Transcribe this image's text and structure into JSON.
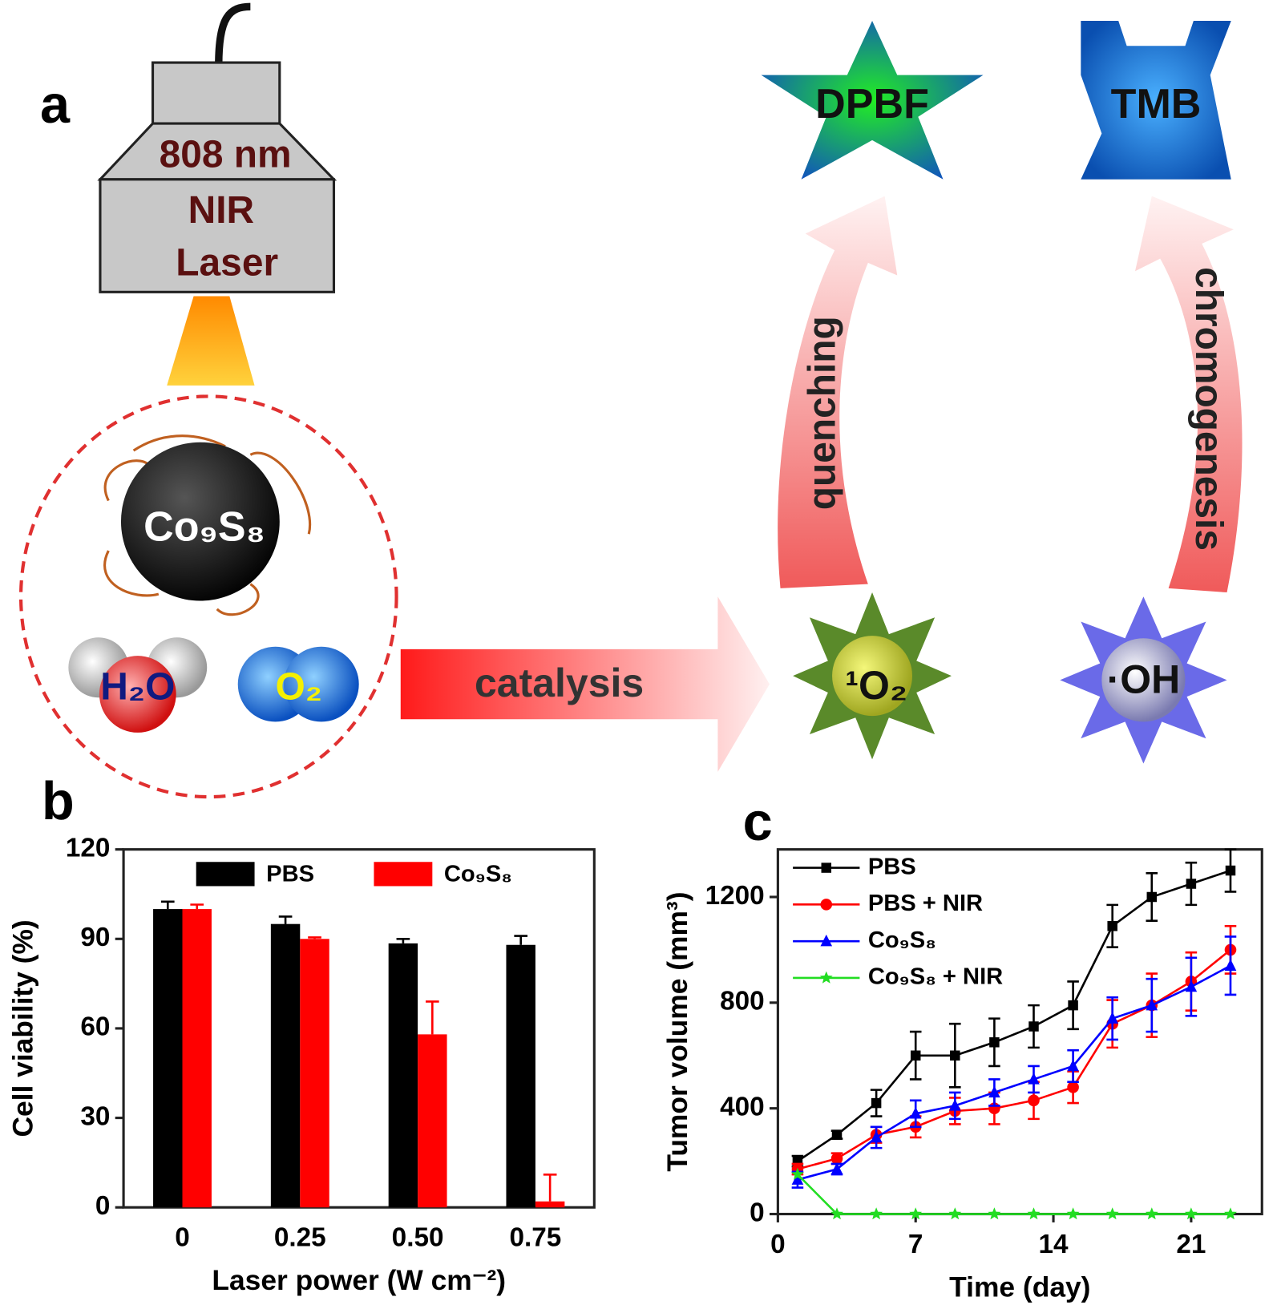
{
  "diagram": {
    "panel_label": "a",
    "laser": [
      "808 nm",
      "NIR",
      "Laser"
    ],
    "nanoparticle": "Co₉S₈",
    "reactants": [
      "H₂O",
      "O₂"
    ],
    "arrow": "catalysis",
    "products": [
      "¹O₂",
      "·OH"
    ],
    "probes": [
      "DPBF",
      "TMB"
    ],
    "reactions": [
      "quenching",
      "chromogenesis"
    ]
  },
  "chart_data": [
    {
      "type": "bar",
      "panel_label": "b",
      "xlabel": "Laser power (W cm⁻²)",
      "ylabel": "Cell viability (%)",
      "categories": [
        "0",
        "0.25",
        "0.50",
        "0.75"
      ],
      "series": [
        {
          "name": "PBS",
          "color": "#000000",
          "values": [
            100,
            95,
            88.5,
            88
          ],
          "errors": [
            2.5,
            2.5,
            1.5,
            3
          ]
        },
        {
          "name": "Co₉S₈",
          "color": "#ff0000",
          "values": [
            100,
            90,
            58,
            2
          ],
          "errors": [
            1.5,
            0.5,
            11,
            9
          ]
        }
      ],
      "ylim": [
        0,
        120
      ],
      "yticks": [
        0,
        30,
        60,
        90,
        120
      ],
      "legend": "top"
    },
    {
      "type": "line",
      "panel_label": "c",
      "xlabel": "Time (day)",
      "ylabel": "Tumor volume (mm³)",
      "x": [
        1,
        3,
        5,
        7,
        9,
        11,
        13,
        15,
        17,
        19,
        21,
        23
      ],
      "series": [
        {
          "name": "PBS",
          "color": "#000000",
          "marker": "square",
          "values": [
            200,
            300,
            420,
            600,
            600,
            650,
            710,
            790,
            1090,
            1200,
            1250,
            1300
          ],
          "errors": [
            20,
            15,
            50,
            90,
            120,
            90,
            80,
            90,
            80,
            90,
            80,
            80
          ]
        },
        {
          "name": "PBS + NIR",
          "color": "#ff0000",
          "marker": "circle",
          "values": [
            170,
            210,
            300,
            330,
            390,
            400,
            430,
            480,
            720,
            790,
            880,
            1000
          ],
          "errors": [
            20,
            20,
            30,
            40,
            50,
            60,
            70,
            60,
            90,
            120,
            110,
            90
          ]
        },
        {
          "name": "Co₉S₈",
          "color": "#0000ff",
          "marker": "triangle",
          "values": [
            130,
            170,
            290,
            380,
            410,
            460,
            510,
            560,
            740,
            790,
            860,
            940
          ],
          "errors": [
            30,
            20,
            40,
            50,
            50,
            50,
            50,
            60,
            80,
            100,
            110,
            110
          ]
        },
        {
          "name": "Co₉S₈ + NIR",
          "color": "#22dd22",
          "marker": "star",
          "values": [
            150,
            0,
            0,
            0,
            0,
            0,
            0,
            0,
            0,
            0,
            0,
            0
          ]
        }
      ],
      "xlim": [
        0,
        24.6
      ],
      "xticks": [
        0,
        7,
        14,
        21
      ],
      "ylim": [
        0,
        1380
      ],
      "yticks": [
        0,
        400,
        800,
        1200
      ],
      "legend": "upper left"
    }
  ]
}
